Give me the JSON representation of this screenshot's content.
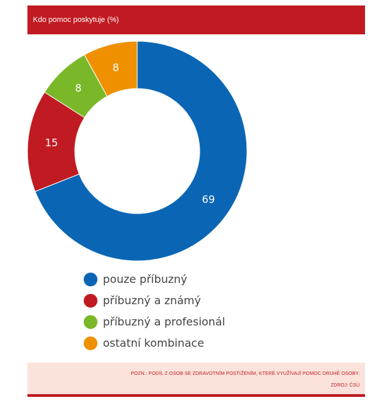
{
  "header": {
    "title": "Kdo pomoc poskytuje (%)"
  },
  "chart_data": {
    "type": "pie",
    "title": "Kdo pomoc poskytuje (%)",
    "categories": [
      "pouze příbuzný",
      "příbuzný a známý",
      "příbuzný a profesionál",
      "ostatní kombinace"
    ],
    "values": [
      69,
      15,
      8,
      8
    ],
    "data_labels": [
      "69",
      "15",
      "8",
      "8"
    ],
    "colors": [
      "#0a66b4",
      "#c01b22",
      "#7ab829",
      "#ee9000"
    ],
    "legend_position": "bottom",
    "donut": true
  },
  "legend": {
    "items": [
      {
        "label": "pouze příbuzný",
        "color": "#0a66b4"
      },
      {
        "label": "příbuzný a známý",
        "color": "#c01b22"
      },
      {
        "label": "příbuzný a profesionál",
        "color": "#7ab829"
      },
      {
        "label": "ostatní kombinace",
        "color": "#ee9000"
      }
    ]
  },
  "footer": {
    "note": "Pozn.: Podíl z osob se zdravotním postižením, které využívají pomoc druhé osoby.",
    "source": "Zdroj: ČSÚ"
  }
}
